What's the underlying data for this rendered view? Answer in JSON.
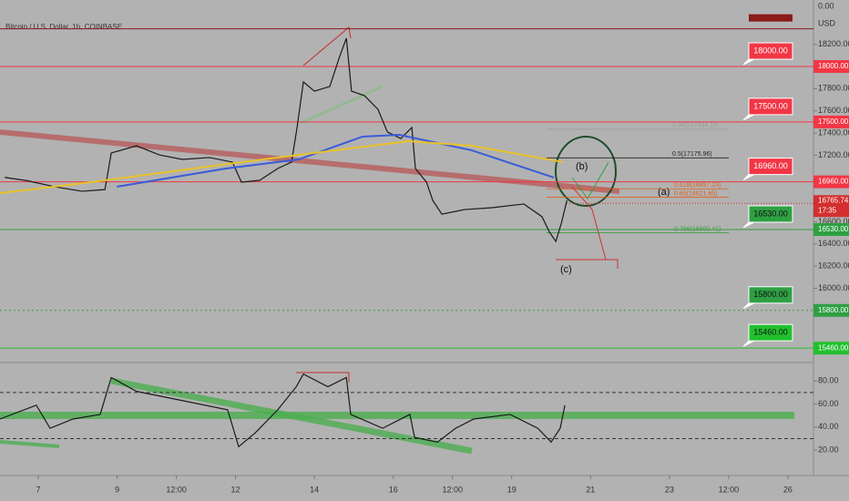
{
  "chart_data": [
    {
      "type": "line",
      "title": "Bitcoin / U.S. Dollar, 1h, COINBASE",
      "currency": "USD",
      "top_label": "0.00",
      "xlim": [
        6.03,
        26.65
      ],
      "ylim": [
        15330,
        18600
      ],
      "yticks": [
        {
          "value": 18200,
          "label": "18200.00"
        },
        {
          "value": 17800,
          "label": "17800.00"
        },
        {
          "value": 17600,
          "label": "17600.00"
        },
        {
          "value": 17400,
          "label": "17400.00"
        },
        {
          "value": 17200,
          "label": "17200.00"
        },
        {
          "value": 16600,
          "label": "16600.00"
        },
        {
          "value": 16400,
          "label": "16400.00"
        },
        {
          "value": 16200,
          "label": "16200.00"
        },
        {
          "value": 16000,
          "label": "16000.00"
        }
      ],
      "series": [
        {
          "color": "#1a1a1a",
          "x": [
            6.15,
            6.72,
            7.42,
            8.11,
            8.69,
            8.85,
            9.49,
            10.07,
            10.65,
            11.34,
            11.92,
            12.15,
            12.61,
            13.07,
            13.42,
            13.56,
            13.72,
            14.0,
            14.39,
            14.64,
            14.81,
            14.94,
            15.27,
            15.61,
            15.85,
            16.19,
            16.47,
            16.56,
            16.84,
            17.0,
            17.23,
            17.81,
            18.5,
            19.31,
            19.77,
            19.96,
            20.12,
            20.26,
            20.4
          ],
          "values": [
            17000,
            16970,
            16915,
            16875,
            16890,
            17220,
            17285,
            17203,
            17162,
            17179,
            17138,
            16957,
            16973,
            17080,
            17138,
            17450,
            17861,
            17778,
            17820,
            18091,
            18255,
            17778,
            17737,
            17614,
            17409,
            17351,
            17450,
            17080,
            16957,
            16792,
            16669,
            16710,
            16727,
            16760,
            16645,
            16505,
            16423,
            16587,
            16792
          ]
        },
        {
          "color": "#3a5bd9",
          "x": [
            8.99,
            11.76,
            13.6,
            15.22,
            16.15,
            17.99,
            20.07
          ],
          "values": [
            16916,
            17080,
            17162,
            17368,
            17384,
            17244,
            16998
          ]
        },
        {
          "color": "#e8c22a",
          "x": [
            6.03,
            8.34,
            11.8,
            13.6,
            16.38,
            17.99,
            20.3
          ],
          "values": [
            16858,
            16957,
            17121,
            17203,
            17326,
            17285,
            17138
          ]
        }
      ],
      "current_price": 16765.74,
      "countdown": "17:35",
      "levels": [
        {
          "value": 18340,
          "color": "#8b1a1a"
        },
        {
          "value": 18000,
          "label": "18000.00",
          "color": "#f23645"
        },
        {
          "value": 17500,
          "label": "17500.00",
          "color": "#f23645"
        },
        {
          "value": 16960,
          "label": "16960.00",
          "color": "#f23645"
        },
        {
          "value": 16530,
          "label": "16530.00",
          "color": "#2ea043"
        },
        {
          "value": 15800,
          "label": "15800.00",
          "color": "#2ea043",
          "dash": true
        },
        {
          "value": 15460,
          "label": "15460.00",
          "color": "#22c02e"
        }
      ],
      "fib": [
        {
          "value": 17434.18,
          "label": "0.382(17434.18)",
          "color": "#999999"
        },
        {
          "value": 17175.96,
          "label": "0.5(17175.96)",
          "color": "#222222"
        },
        {
          "value": 16897.23,
          "label": "0.618(16897.23)",
          "color": "#e06020"
        },
        {
          "value": 16821.65,
          "label": "0.65(16821.65)",
          "color": "#e06020"
        },
        {
          "value": 16500.41,
          "label": "0.786(16500.41)",
          "color": "#3aa040"
        }
      ],
      "annotations": [
        "(a)",
        "(b)",
        "(c)"
      ]
    },
    {
      "type": "line",
      "xlim": [
        6.03,
        26.65
      ],
      "ylim": [
        -2,
        96
      ],
      "xticks": [
        7,
        9,
        {
          "value": 10.5,
          "label": "12:00"
        },
        12,
        14,
        16,
        {
          "value": 17.5,
          "label": "12:00"
        },
        19,
        21,
        23,
        {
          "value": 24.5,
          "label": "12:00"
        },
        26
      ],
      "yticks": [
        {
          "value": 80,
          "label": "80.00"
        },
        {
          "value": 60,
          "label": "60.00"
        },
        {
          "value": 40,
          "label": "40.00"
        },
        {
          "value": 20,
          "label": "20.00"
        }
      ],
      "bands": [
        70,
        30
      ],
      "series": [
        {
          "color": "#1a1a1a",
          "x": [
            6.03,
            6.95,
            7.3,
            7.88,
            8.57,
            8.85,
            9.49,
            10.65,
            11.8,
            12.08,
            12.5,
            13.07,
            13.54,
            13.72,
            14.34,
            14.81,
            14.92,
            15.73,
            16.42,
            16.54,
            17.12,
            17.58,
            18.04,
            18.96,
            19.66,
            20.0,
            20.23,
            20.35
          ],
          "values": [
            47,
            59,
            39,
            47,
            51,
            83,
            71,
            63,
            55,
            23,
            35,
            55,
            75,
            86,
            75,
            83,
            51,
            39,
            51,
            31,
            27,
            39,
            47,
            51,
            39,
            27,
            39,
            59
          ]
        }
      ]
    }
  ]
}
